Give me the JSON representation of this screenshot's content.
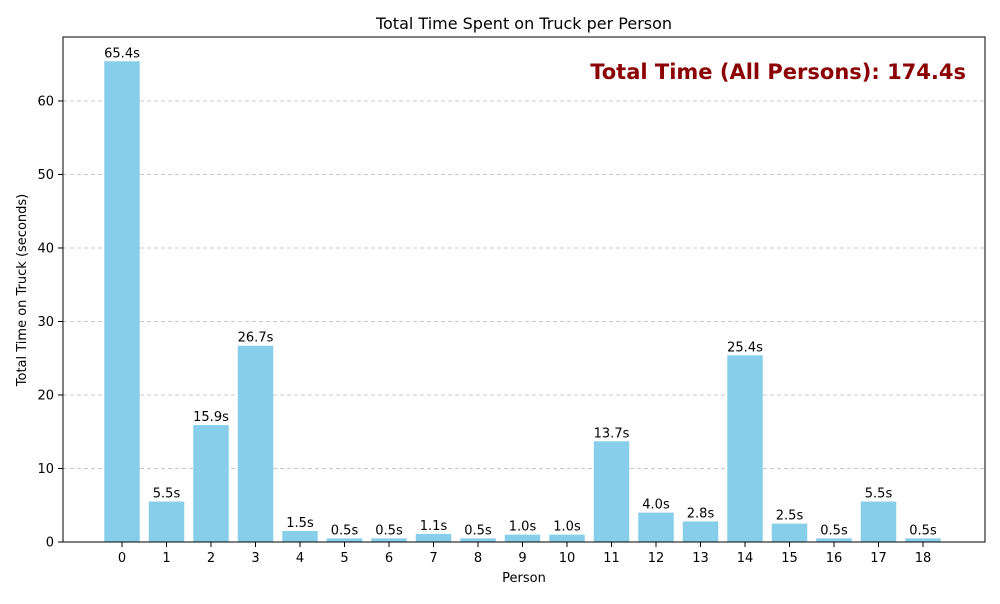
{
  "chart_data": {
    "type": "bar",
    "title": "Total Time Spent on Truck per Person",
    "xlabel": "Person",
    "ylabel": "Total Time on Truck (seconds)",
    "categories": [
      "0",
      "1",
      "2",
      "3",
      "4",
      "5",
      "6",
      "7",
      "8",
      "9",
      "10",
      "11",
      "12",
      "13",
      "14",
      "15",
      "16",
      "17",
      "18"
    ],
    "values": [
      65.4,
      5.5,
      15.9,
      26.7,
      1.5,
      0.5,
      0.5,
      1.1,
      0.5,
      1.0,
      1.0,
      13.7,
      4.0,
      2.8,
      25.4,
      2.5,
      0.5,
      5.5,
      0.5
    ],
    "value_labels": [
      "65.4s",
      "5.5s",
      "15.9s",
      "26.7s",
      "1.5s",
      "0.5s",
      "0.5s",
      "1.1s",
      "0.5s",
      "1.0s",
      "1.0s",
      "13.7s",
      "4.0s",
      "2.8s",
      "25.4s",
      "2.5s",
      "0.5s",
      "5.5s",
      "0.5s"
    ],
    "ylim": [
      0,
      68.7
    ],
    "yticks": [
      0,
      10,
      20,
      30,
      40,
      50,
      60
    ],
    "grid": "y-dashed",
    "annotation": "Total Time (All Persons): 174.4s",
    "annotation_placement": "top-right",
    "colors": {
      "bar": "#87ceeb",
      "annotation": "#8b0000",
      "grid": "#c8c8c8",
      "axis": "#000000"
    }
  }
}
